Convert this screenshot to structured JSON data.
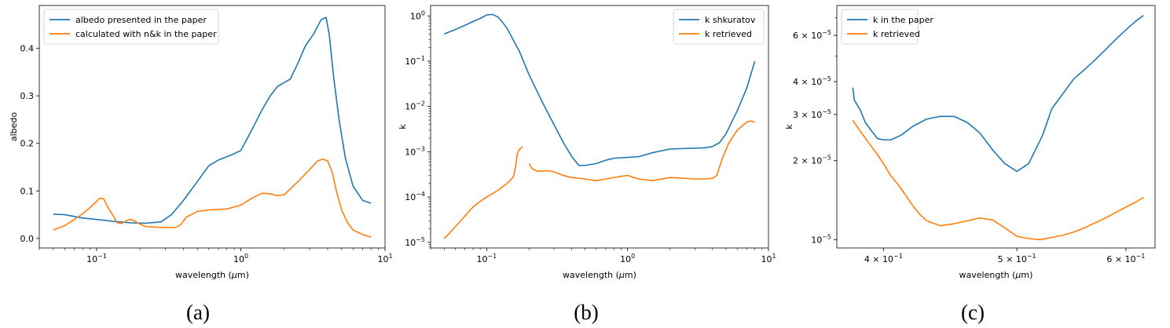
{
  "chart_data": [
    {
      "type": "line",
      "caption": "(a)",
      "xlabel": "wavelength (μm)",
      "ylabel": "albedo",
      "xscale": "log",
      "yscale": "linear",
      "xlim": [
        0.04,
        10
      ],
      "ylim": [
        -0.02,
        0.49
      ],
      "xticks": [
        {
          "value": 0.1,
          "mant": "10",
          "exp": "−1"
        },
        {
          "value": 1,
          "mant": "10",
          "exp": "0"
        },
        {
          "value": 10,
          "mant": "10",
          "exp": "1"
        }
      ],
      "yticks": [
        {
          "value": 0.0,
          "label": "0.0"
        },
        {
          "value": 0.1,
          "label": "0.1"
        },
        {
          "value": 0.2,
          "label": "0.2"
        },
        {
          "value": 0.3,
          "label": "0.3"
        },
        {
          "value": 0.4,
          "label": "0.4"
        }
      ],
      "legend": "top-left",
      "grid": false,
      "series": [
        {
          "name": "albedo presented in the paper",
          "color": "#1f77b4",
          "x": [
            0.05,
            0.06,
            0.08,
            0.1,
            0.13,
            0.17,
            0.22,
            0.28,
            0.33,
            0.4,
            0.5,
            0.6,
            0.7,
            0.85,
            1.0,
            1.2,
            1.4,
            1.6,
            1.8,
            2.0,
            2.2,
            2.5,
            2.8,
            3.2,
            3.6,
            3.9,
            4.1,
            4.4,
            4.8,
            5.3,
            6.0,
            7.0,
            8.0
          ],
          "y": [
            0.051,
            0.05,
            0.043,
            0.04,
            0.036,
            0.033,
            0.032,
            0.035,
            0.05,
            0.08,
            0.12,
            0.153,
            0.165,
            0.175,
            0.185,
            0.23,
            0.27,
            0.3,
            0.32,
            0.328,
            0.335,
            0.37,
            0.405,
            0.43,
            0.46,
            0.465,
            0.43,
            0.34,
            0.25,
            0.17,
            0.11,
            0.08,
            0.074
          ]
        },
        {
          "name": "calculated with n&k in the paper",
          "color": "#ff7f0e",
          "x": [
            0.05,
            0.06,
            0.07,
            0.08,
            0.09,
            0.1,
            0.105,
            0.112,
            0.12,
            0.13,
            0.14,
            0.15,
            0.16,
            0.17,
            0.18,
            0.2,
            0.22,
            0.25,
            0.3,
            0.35,
            0.38,
            0.42,
            0.5,
            0.6,
            0.8,
            1.0,
            1.2,
            1.4,
            1.6,
            1.8,
            2.0,
            2.5,
            3.0,
            3.4,
            3.7,
            4.0,
            4.3,
            4.6,
            5.0,
            5.5,
            6.0,
            7.0,
            8.0
          ],
          "y": [
            0.018,
            0.027,
            0.04,
            0.052,
            0.065,
            0.078,
            0.085,
            0.083,
            0.065,
            0.048,
            0.032,
            0.032,
            0.037,
            0.04,
            0.038,
            0.03,
            0.025,
            0.024,
            0.023,
            0.023,
            0.028,
            0.045,
            0.057,
            0.06,
            0.062,
            0.07,
            0.085,
            0.095,
            0.094,
            0.09,
            0.092,
            0.12,
            0.145,
            0.163,
            0.167,
            0.163,
            0.14,
            0.1,
            0.06,
            0.033,
            0.018,
            0.008,
            0.003
          ]
        }
      ]
    },
    {
      "type": "line",
      "caption": "(b)",
      "xlabel": "wavelength (μm)",
      "ylabel": "k",
      "xscale": "log",
      "yscale": "log",
      "xlim": [
        0.04,
        10
      ],
      "ylim": [
        7.5e-06,
        1.7
      ],
      "xticks": [
        {
          "value": 0.1,
          "mant": "10",
          "exp": "−1"
        },
        {
          "value": 1,
          "mant": "10",
          "exp": "0"
        },
        {
          "value": 10,
          "mant": "10",
          "exp": "1"
        }
      ],
      "yticks": [
        {
          "value": 1e-05,
          "mant": "10",
          "exp": "−5"
        },
        {
          "value": 0.0001,
          "mant": "10",
          "exp": "−4"
        },
        {
          "value": 0.001,
          "mant": "10",
          "exp": "−3"
        },
        {
          "value": 0.01,
          "mant": "10",
          "exp": "−2"
        },
        {
          "value": 0.1,
          "mant": "10",
          "exp": "−1"
        },
        {
          "value": 1,
          "mant": "10",
          "exp": "0"
        }
      ],
      "legend": "top-right",
      "grid": false,
      "series": [
        {
          "name": "k shkuratov",
          "color": "#1f77b4",
          "segments": [
            {
              "x": [
                0.05,
                0.06,
                0.07,
                0.08,
                0.09,
                0.1,
                0.11,
                0.12,
                0.13,
                0.14,
                0.15,
                0.17,
                0.2,
                0.25,
                0.3,
                0.35,
                0.4,
                0.45,
                0.5,
                0.6,
                0.7,
                0.8,
                1.0,
                1.2,
                1.5,
                2.0,
                2.5,
                3.0,
                3.5,
                4.0,
                4.5,
                5.0,
                6.0,
                7.0,
                8.0
              ],
              "y": [
                0.4,
                0.5,
                0.62,
                0.75,
                0.88,
                1.05,
                1.08,
                0.95,
                0.72,
                0.52,
                0.35,
                0.17,
                0.05,
                0.012,
                0.004,
                0.0016,
                0.0008,
                0.0005,
                0.0005,
                0.00055,
                0.00065,
                0.00072,
                0.00075,
                0.00078,
                0.00095,
                0.00115,
                0.00118,
                0.0012,
                0.00122,
                0.0013,
                0.0016,
                0.0025,
                0.008,
                0.025,
                0.1
              ]
            }
          ]
        },
        {
          "name": "k retrieved",
          "color": "#ff7f0e",
          "segments": [
            {
              "x": [
                0.05,
                0.06,
                0.07,
                0.08,
                0.09,
                0.1,
                0.12,
                0.14,
                0.155,
                0.16,
                0.165,
                0.17,
                0.175,
                0.18
              ],
              "y": [
                1.2e-05,
                2.2e-05,
                3.8e-05,
                6e-05,
                8e-05,
                0.0001,
                0.00014,
                0.0002,
                0.00028,
                0.00045,
                0.0009,
                0.0011,
                0.0012,
                0.0013
              ]
            },
            {
              "x": [
                0.2,
                0.21,
                0.23,
                0.27,
                0.3,
                0.35,
                0.4,
                0.5,
                0.6,
                0.7,
                0.8,
                1.0,
                1.2,
                1.5,
                2.0,
                2.5,
                3.0,
                3.5,
                4.0,
                4.3,
                4.7,
                5.2,
                6.0,
                7.0,
                7.5,
                8.0
              ],
              "y": [
                0.00055,
                0.00042,
                0.00037,
                0.00038,
                0.00036,
                0.0003,
                0.00027,
                0.00025,
                0.00023,
                0.00025,
                0.00027,
                0.0003,
                0.00025,
                0.00023,
                0.00027,
                0.00026,
                0.00025,
                0.00025,
                0.00026,
                0.0003,
                0.0007,
                0.0015,
                0.003,
                0.0045,
                0.0048,
                0.0045
              ]
            }
          ]
        }
      ]
    },
    {
      "type": "line",
      "caption": "(c)",
      "xlabel": "wavelength (μm)",
      "ylabel": "k",
      "xscale": "log",
      "yscale": "log",
      "xlim": [
        0.37,
        0.63
      ],
      "ylim": [
        9.3e-06,
        7.8e-05
      ],
      "xticks": [
        {
          "value": 0.4,
          "mant": "4 × 10",
          "exp": "−1"
        },
        {
          "value": 0.5,
          "mant": "5 × 10",
          "exp": "−1"
        },
        {
          "value": 0.6,
          "mant": "6 × 10",
          "exp": "−1"
        }
      ],
      "yticks": [
        {
          "value": 1e-05,
          "mant": "10",
          "exp": "−5"
        },
        {
          "value": 2e-05,
          "mant": "2 × 10",
          "exp": "−5"
        },
        {
          "value": 3e-05,
          "mant": "3 × 10",
          "exp": "−5"
        },
        {
          "value": 4e-05,
          "mant": "4 × 10",
          "exp": "−5"
        },
        {
          "value": 6e-05,
          "mant": "6 × 10",
          "exp": "−5"
        }
      ],
      "legend": "top-left",
      "grid": false,
      "series": [
        {
          "name": "k in the paper",
          "color": "#1f77b4",
          "x": [
            0.38,
            0.381,
            0.385,
            0.388,
            0.392,
            0.396,
            0.4,
            0.405,
            0.412,
            0.42,
            0.43,
            0.44,
            0.45,
            0.46,
            0.47,
            0.48,
            0.49,
            0.5,
            0.51,
            0.522,
            0.53,
            0.54,
            0.55,
            0.56,
            0.57,
            0.58,
            0.59,
            0.6,
            0.61,
            0.618
          ],
          "y": [
            3.8e-05,
            3.4e-05,
            3.1e-05,
            2.8e-05,
            2.6e-05,
            2.43e-05,
            2.4e-05,
            2.4e-05,
            2.5e-05,
            2.7e-05,
            2.88e-05,
            2.95e-05,
            2.95e-05,
            2.8e-05,
            2.55e-05,
            2.2e-05,
            1.95e-05,
            1.82e-05,
            1.95e-05,
            2.5e-05,
            3.15e-05,
            3.6e-05,
            4.1e-05,
            4.45e-05,
            4.85e-05,
            5.3e-05,
            5.8e-05,
            6.3e-05,
            6.8e-05,
            7.15e-05
          ]
        },
        {
          "name": "k retrieved",
          "color": "#ff7f0e",
          "x": [
            0.38,
            0.385,
            0.39,
            0.395,
            0.4,
            0.405,
            0.41,
            0.415,
            0.42,
            0.425,
            0.43,
            0.44,
            0.45,
            0.46,
            0.47,
            0.48,
            0.49,
            0.5,
            0.51,
            0.52,
            0.53,
            0.54,
            0.55,
            0.56,
            0.57,
            0.58,
            0.59,
            0.6,
            0.61,
            0.618
          ],
          "y": [
            2.85e-05,
            2.58e-05,
            2.35e-05,
            2.15e-05,
            1.95e-05,
            1.75e-05,
            1.62e-05,
            1.48e-05,
            1.35e-05,
            1.25e-05,
            1.18e-05,
            1.13e-05,
            1.15e-05,
            1.18e-05,
            1.21e-05,
            1.19e-05,
            1.11e-05,
            1.03e-05,
            1.01e-05,
            1e-05,
            1.02e-05,
            1.04e-05,
            1.07e-05,
            1.11e-05,
            1.16e-05,
            1.21e-05,
            1.27e-05,
            1.33e-05,
            1.39e-05,
            1.45e-05
          ]
        }
      ]
    }
  ]
}
